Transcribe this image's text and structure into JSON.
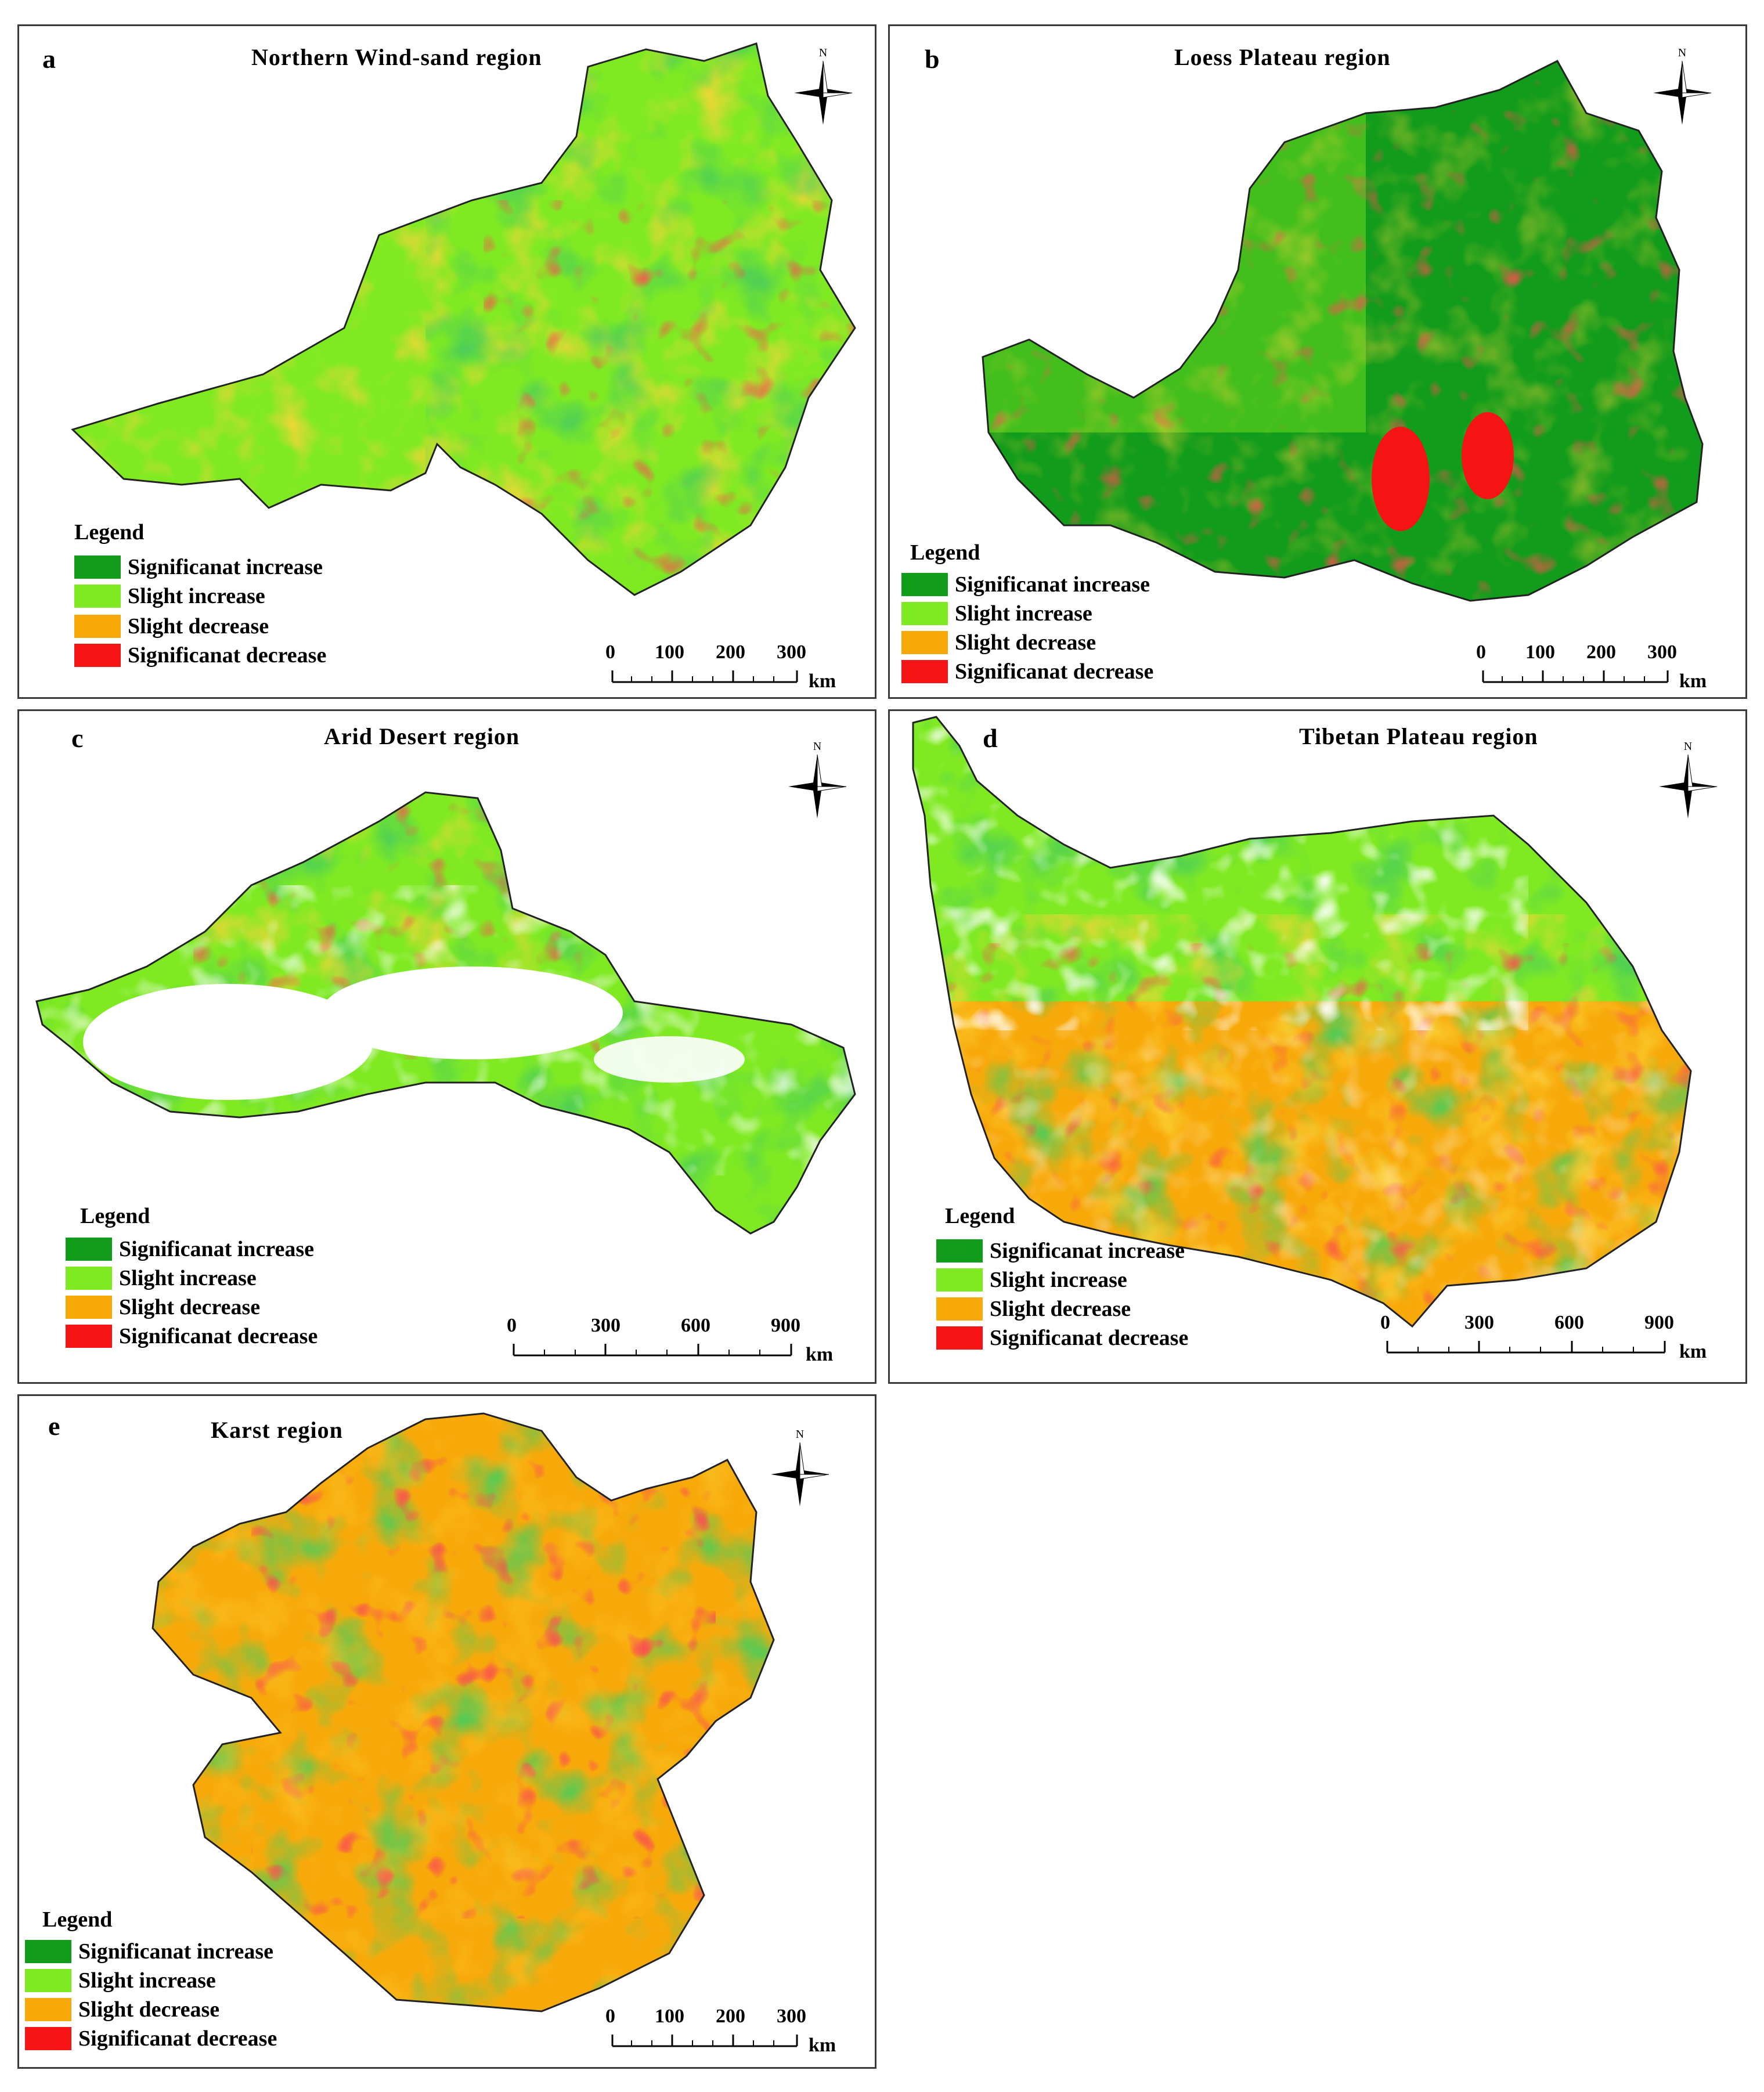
{
  "colors": {
    "significant_increase": "#119c1b",
    "slight_increase": "#7fea22",
    "slight_decrease": "#f8a90a",
    "significant_decrease": "#f41414"
  },
  "legend": {
    "title": "Legend",
    "items": [
      "Significanat increase",
      "Slight increase",
      "Slight  decrease",
      "Significanat decrease"
    ]
  },
  "north_label": "N",
  "panels": [
    {
      "letter": "a",
      "title": "Northern Wind-sand region",
      "scale": {
        "ticks": [
          "0",
          "100",
          "200",
          "300"
        ],
        "unit": "km"
      }
    },
    {
      "letter": "b",
      "title": "Loess Plateau region",
      "scale": {
        "ticks": [
          "0",
          "100",
          "200",
          "300"
        ],
        "unit": "km"
      }
    },
    {
      "letter": "c",
      "title": "Arid Desert region",
      "scale": {
        "ticks": [
          "0",
          "300",
          "600",
          "900"
        ],
        "unit": "km"
      }
    },
    {
      "letter": "d",
      "title": "Tibetan Plateau region",
      "scale": {
        "ticks": [
          "0",
          "300",
          "600",
          "900"
        ],
        "unit": "km"
      }
    },
    {
      "letter": "e",
      "title": "Karst region",
      "scale": {
        "ticks": [
          "0",
          "100",
          "200",
          "300"
        ],
        "unit": "km"
      }
    }
  ]
}
